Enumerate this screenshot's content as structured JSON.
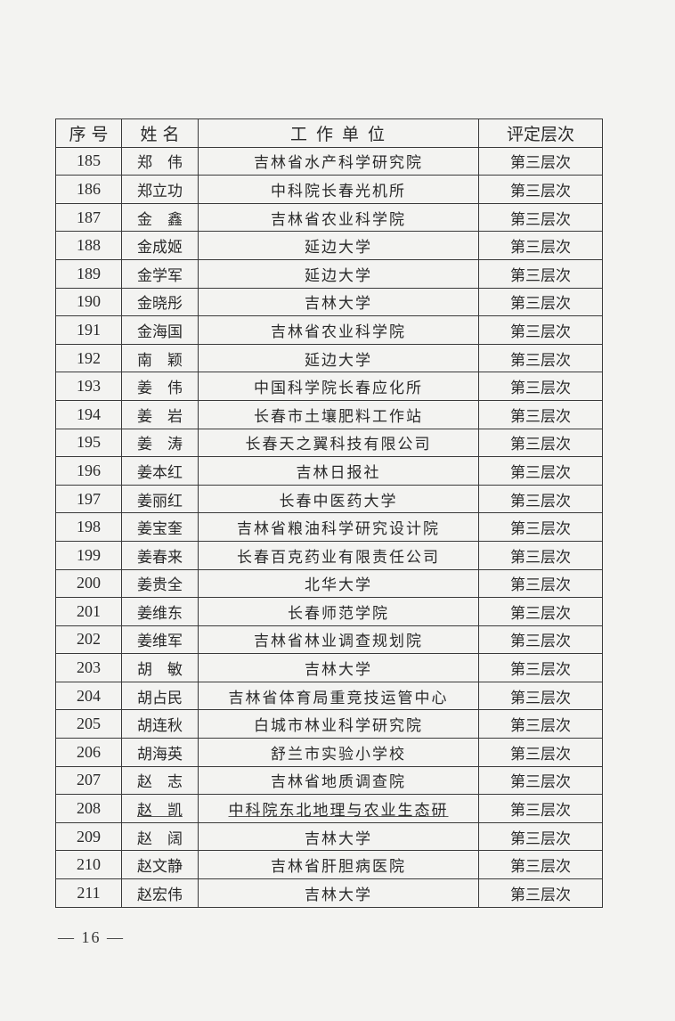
{
  "table": {
    "headers": [
      "序 号",
      "姓 名",
      "工 作 单 位",
      "评定层次"
    ],
    "rows": [
      {
        "no": "185",
        "name": "郑　伟",
        "unit": "吉林省水产科学研究院",
        "level": "第三层次"
      },
      {
        "no": "186",
        "name": "郑立功",
        "unit": "中科院长春光机所",
        "level": "第三层次"
      },
      {
        "no": "187",
        "name": "金　鑫",
        "unit": "吉林省农业科学院",
        "level": "第三层次"
      },
      {
        "no": "188",
        "name": "金成姬",
        "unit": "延边大学",
        "level": "第三层次"
      },
      {
        "no": "189",
        "name": "金学军",
        "unit": "延边大学",
        "level": "第三层次"
      },
      {
        "no": "190",
        "name": "金晓彤",
        "unit": "吉林大学",
        "level": "第三层次"
      },
      {
        "no": "191",
        "name": "金海国",
        "unit": "吉林省农业科学院",
        "level": "第三层次"
      },
      {
        "no": "192",
        "name": "南　颖",
        "unit": "延边大学",
        "level": "第三层次"
      },
      {
        "no": "193",
        "name": "姜　伟",
        "unit": "中国科学院长春应化所",
        "level": "第三层次"
      },
      {
        "no": "194",
        "name": "姜　岩",
        "unit": "长春市土壤肥料工作站",
        "level": "第三层次"
      },
      {
        "no": "195",
        "name": "姜　涛",
        "unit": "长春天之翼科技有限公司",
        "level": "第三层次"
      },
      {
        "no": "196",
        "name": "姜本红",
        "unit": "吉林日报社",
        "level": "第三层次"
      },
      {
        "no": "197",
        "name": "姜丽红",
        "unit": "长春中医药大学",
        "level": "第三层次"
      },
      {
        "no": "198",
        "name": "姜宝奎",
        "unit": "吉林省粮油科学研究设计院",
        "level": "第三层次"
      },
      {
        "no": "199",
        "name": "姜春来",
        "unit": "长春百克药业有限责任公司",
        "level": "第三层次"
      },
      {
        "no": "200",
        "name": "姜贵全",
        "unit": "北华大学",
        "level": "第三层次"
      },
      {
        "no": "201",
        "name": "姜维东",
        "unit": "长春师范学院",
        "level": "第三层次"
      },
      {
        "no": "202",
        "name": "姜维军",
        "unit": "吉林省林业调查规划院",
        "level": "第三层次"
      },
      {
        "no": "203",
        "name": "胡　敏",
        "unit": "吉林大学",
        "level": "第三层次"
      },
      {
        "no": "204",
        "name": "胡占民",
        "unit": "吉林省体育局重竞技运管中心",
        "level": "第三层次"
      },
      {
        "no": "205",
        "name": "胡连秋",
        "unit": "白城市林业科学研究院",
        "level": "第三层次"
      },
      {
        "no": "206",
        "name": "胡海英",
        "unit": "舒兰市实验小学校",
        "level": "第三层次"
      },
      {
        "no": "207",
        "name": "赵　志",
        "unit": "吉林省地质调查院",
        "level": "第三层次"
      },
      {
        "no": "208",
        "name": "赵　凯",
        "unit": "中科院东北地理与农业生态研",
        "level": "第三层次"
      },
      {
        "no": "209",
        "name": "赵　阔",
        "unit": "吉林大学",
        "level": "第三层次"
      },
      {
        "no": "210",
        "name": "赵文静",
        "unit": "吉林省肝胆病医院",
        "level": "第三层次"
      },
      {
        "no": "211",
        "name": "赵宏伟",
        "unit": "吉林大学",
        "level": "第三层次"
      }
    ]
  },
  "footer": {
    "page_number": "— 16 —"
  }
}
